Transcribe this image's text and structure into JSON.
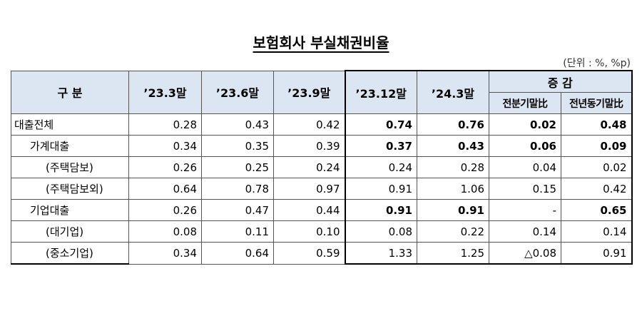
{
  "title": "보험회사 부실채권비율",
  "unit": "(단위 : %, %p)",
  "header": {
    "category": "구   분",
    "periods": [
      "’23.3말",
      "’23.6말",
      "’23.9말",
      "’23.12말",
      "’24.3말"
    ],
    "change": "증  감",
    "change_sub": [
      "전분기말比",
      "전년동기말比"
    ]
  },
  "rows": [
    {
      "label": "대출전체",
      "cells": [
        "0.28",
        "0.43",
        "0.42",
        "0.74",
        "0.76",
        "0.02",
        "0.48"
      ]
    },
    {
      "label": "가계대출",
      "cells": [
        "0.34",
        "0.35",
        "0.39",
        "0.37",
        "0.43",
        "0.06",
        "0.09"
      ]
    },
    {
      "label": "(주택담보)",
      "cells": [
        "0.26",
        "0.25",
        "0.24",
        "0.24",
        "0.28",
        "0.04",
        "0.02"
      ]
    },
    {
      "label": "(주택담보외)",
      "cells": [
        "0.64",
        "0.78",
        "0.97",
        "0.91",
        "1.06",
        "0.15",
        "0.42"
      ]
    },
    {
      "label": "기업대출",
      "cells": [
        "0.26",
        "0.47",
        "0.44",
        "0.91",
        "0.91",
        "-",
        "0.65"
      ]
    },
    {
      "label": "(대기업)",
      "cells": [
        "0.08",
        "0.11",
        "0.10",
        "0.08",
        "0.22",
        "0.14",
        "0.14"
      ]
    },
    {
      "label": "(중소기업)",
      "cells": [
        "0.34",
        "0.64",
        "0.59",
        "1.33",
        "1.25",
        "△0.08",
        "0.91"
      ]
    }
  ]
}
